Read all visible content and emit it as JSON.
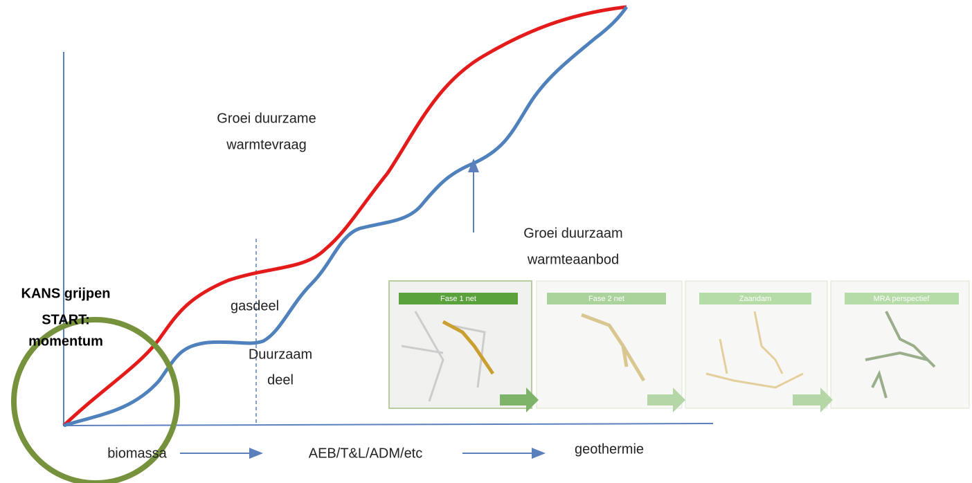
{
  "demand_label": [
    "Groei duurzame",
    "warmtevraag"
  ],
  "supply_label": [
    "Groei duurzaam",
    "warmteaanbod"
  ],
  "start_label": [
    "KANS grijpen",
    "START:",
    "momentum"
  ],
  "gas_label": "gasdeel",
  "sustainable_label": [
    "Duurzaam",
    "deel"
  ],
  "sources": [
    "biomassa",
    "AEB/T&L/ADM/etc",
    "geothermie"
  ],
  "maps": [
    "Fase 1 net",
    "Fase 2 net",
    "Zaandam",
    "MRA perspectief"
  ]
}
